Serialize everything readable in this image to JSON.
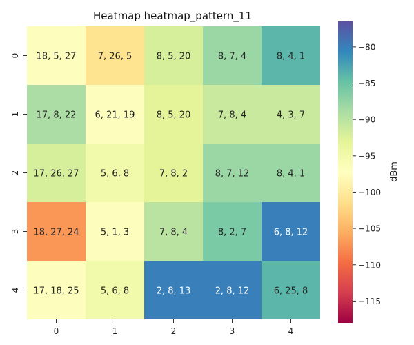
{
  "chart_data": {
    "type": "heatmap",
    "title": "Heatmap heatmap_pattern_11",
    "xlabel": "",
    "ylabel": "",
    "x_categories": [
      "0",
      "1",
      "2",
      "3",
      "4"
    ],
    "y_categories": [
      "0",
      "1",
      "2",
      "3",
      "4"
    ],
    "annotations": [
      [
        "18, 5, 27",
        "7, 26, 5",
        "8, 5, 20",
        "8, 7, 4",
        "8, 4, 1"
      ],
      [
        "17, 8, 22",
        "6, 21, 19",
        "8, 5, 20",
        "7, 8, 4",
        "4, 3, 7"
      ],
      [
        "17, 26, 27",
        "5, 6, 8",
        "7, 8, 2",
        "8, 7, 12",
        "8, 4, 1"
      ],
      [
        "18, 27, 24",
        "5, 1, 3",
        "7, 8, 4",
        "8, 2, 7",
        "6, 8, 12"
      ],
      [
        "17, 18, 25",
        "5, 6, 8",
        "2, 8, 13",
        "2, 8, 12",
        "6, 25, 8"
      ]
    ],
    "values": [
      [
        -97,
        -101,
        -92,
        -88,
        -84
      ],
      [
        -89,
        -97,
        -93,
        -91,
        -91
      ],
      [
        -92,
        -95,
        -93,
        -88,
        -88
      ],
      [
        -107,
        -97,
        -90,
        -86,
        -80
      ],
      [
        -97,
        -95,
        -80,
        -80,
        -84
      ]
    ],
    "colorbar": {
      "label": "dBm",
      "range": [
        -118,
        -76.5
      ],
      "ticks": [
        -80,
        -85,
        -90,
        -95,
        -100,
        -105,
        -110,
        -115
      ],
      "tick_labels": [
        "−80",
        "−85",
        "−90",
        "−95",
        "−100",
        "−105",
        "−110",
        "−115"
      ],
      "colormap": "Spectral"
    }
  }
}
